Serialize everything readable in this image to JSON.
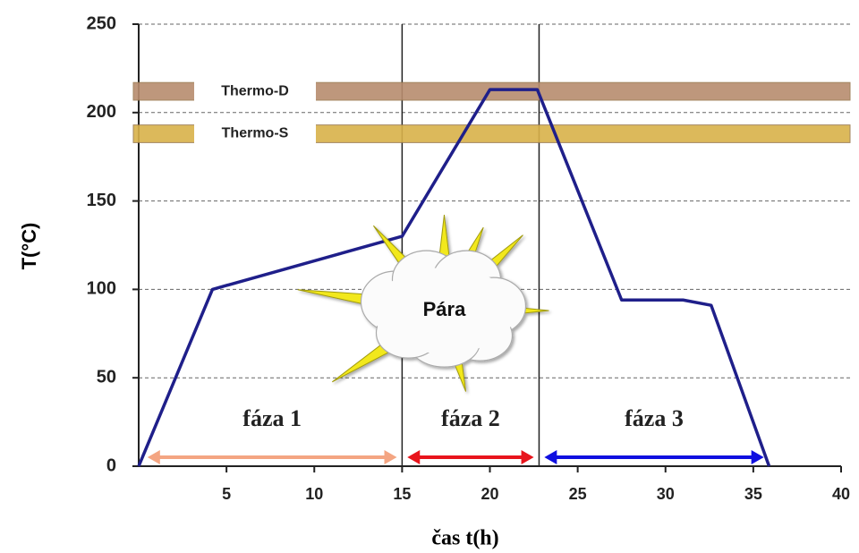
{
  "chart_data": {
    "type": "line",
    "x": [
      0,
      4.2,
      15,
      20,
      22.7,
      27.5,
      31,
      32.6,
      35.9
    ],
    "values": [
      0,
      100,
      130,
      213,
      213,
      94,
      94,
      91,
      0
    ],
    "color": "#1f1f8a",
    "xlim": [
      0,
      40
    ],
    "ylim": [
      0,
      250
    ],
    "xticks": [
      5,
      10,
      15,
      20,
      25,
      30,
      35,
      40
    ],
    "yticks": [
      0,
      50,
      100,
      150,
      200,
      250
    ],
    "grid": true,
    "ylabel": "T(°C)",
    "xlabel": "čas t(h)",
    "vlines": [
      15,
      22.8
    ],
    "bands": [
      {
        "label": "Thermo-D",
        "range": [
          207,
          217
        ],
        "color": "#b88c6e"
      },
      {
        "label": "Thermo-S",
        "range": [
          183,
          193
        ],
        "color": "#d9b24a"
      }
    ],
    "phases": [
      {
        "label": "fáza 1",
        "range": [
          0.5,
          14.7
        ],
        "color": "#f4a582"
      },
      {
        "label": "fáza 2",
        "range": [
          15.3,
          22.5
        ],
        "color": "#e8141c"
      },
      {
        "label": "fáza 3",
        "range": [
          23.1,
          35.6
        ],
        "color": "#1010e0"
      }
    ],
    "annotation": {
      "text": "Pára",
      "x": 17.4,
      "y": 88
    }
  }
}
